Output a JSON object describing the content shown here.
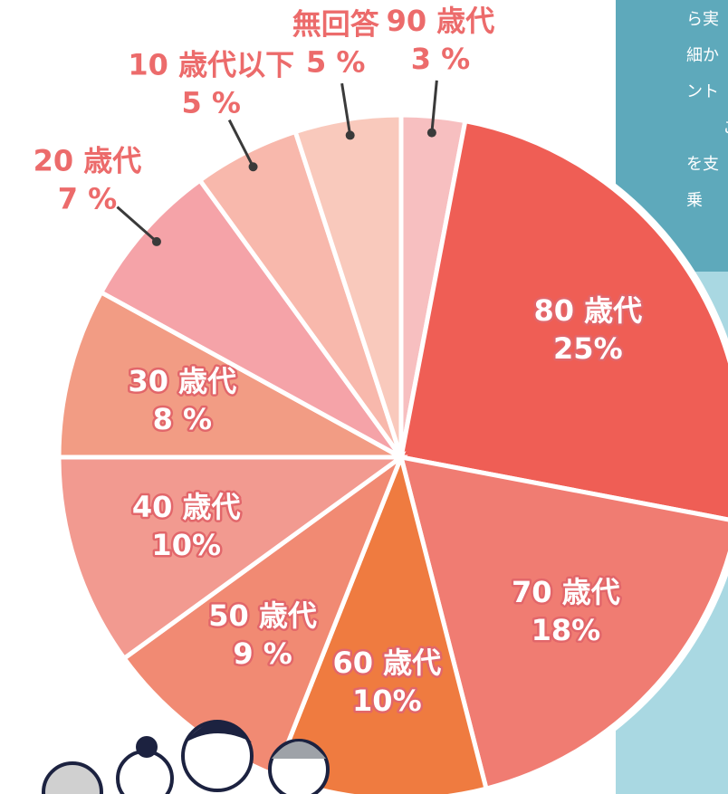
{
  "chart_data": {
    "type": "pie",
    "categories": [
      "90 歳代",
      "80 歳代",
      "70 歳代",
      "60 歳代",
      "50 歳代",
      "40 歳代",
      "30 歳代",
      "20 歳代",
      "10 歳代以下",
      "無回答"
    ],
    "values": [
      3,
      25,
      18,
      10,
      9,
      10,
      8,
      7,
      5,
      5
    ],
    "value_labels": [
      "3 %",
      "25%",
      "18%",
      "10%",
      "9 %",
      "10%",
      "8 %",
      "7 %",
      "5 %",
      "5 %"
    ],
    "colors": [
      "#f7bfc0",
      "#ef5e55",
      "#f07c72",
      "#ef7b40",
      "#f18a73",
      "#f29a90",
      "#f29c84",
      "#f5a3a8",
      "#f8b8ac",
      "#f9c9bc"
    ]
  },
  "background_text": [
    "ら実",
    "細か",
    "ント",
    "こ",
    "を支",
    "乗"
  ]
}
